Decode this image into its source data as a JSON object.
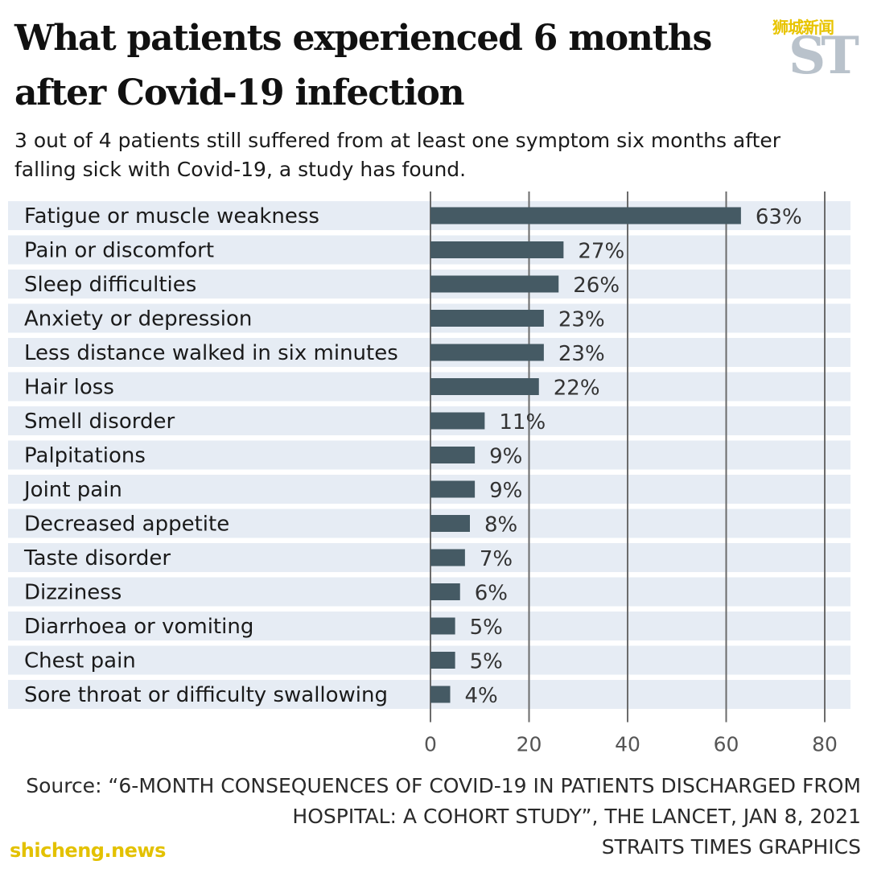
{
  "header": {
    "title": "What patients experienced 6 months after Covid-19 infection",
    "subtitle": "3 out of 4 patients still suffered from at least one symptom six months after falling sick with Covid-19, a study has found."
  },
  "brand": {
    "logo_text": "ST",
    "chinese_mark": "狮城新闻"
  },
  "footer": {
    "source": "Source: “6-MONTH CONSEQUENCES OF COVID-19 IN PATIENTS DISCHARGED FROM HOSPITAL: A COHORT STUDY”, THE LANCET, JAN 8, 2021",
    "credit": "STRAITS TIMES GRAPHICS"
  },
  "watermark": "shicheng.news",
  "colors": {
    "bar": "#455a64",
    "row_band": "#e6ecf4",
    "gridline": "#6b6b6b",
    "text": "#1a1a1a"
  },
  "chart_data": {
    "type": "bar",
    "orientation": "horizontal",
    "categories": [
      "Fatigue or muscle weakness",
      "Pain or discomfort",
      "Sleep difficulties",
      "Anxiety or depression",
      "Less distance walked in six minutes",
      "Hair loss",
      "Smell disorder",
      "Palpitations",
      "Joint pain",
      "Decreased appetite",
      "Taste disorder",
      "Dizziness",
      "Diarrhoea or vomiting",
      "Chest pain",
      "Sore throat or difficulty swallowing"
    ],
    "values": [
      63,
      27,
      26,
      23,
      23,
      22,
      11,
      9,
      9,
      8,
      7,
      6,
      5,
      5,
      4
    ],
    "value_suffix": "%",
    "xlim": [
      0,
      80
    ],
    "xticks": [
      0,
      20,
      40,
      60,
      80
    ],
    "grid": true
  }
}
